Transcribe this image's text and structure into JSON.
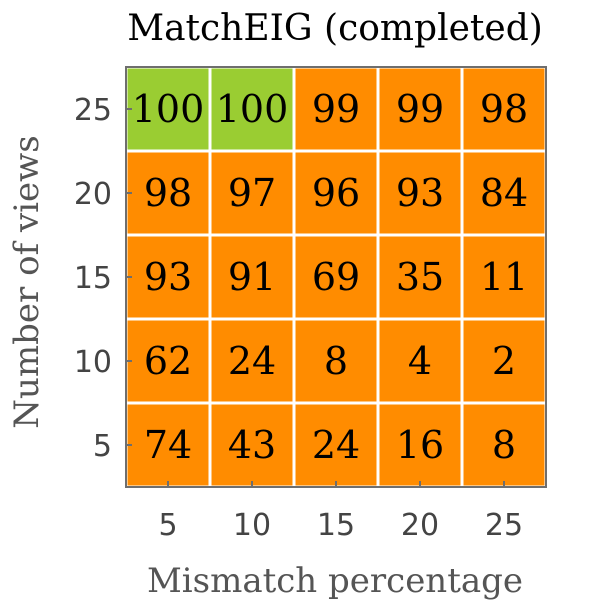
{
  "chart_data": {
    "type": "heatmap",
    "title": "MatchEIG (completed)",
    "xlabel": "Mismatch percentage",
    "ylabel": "Number of views",
    "x_categories": [
      "5",
      "10",
      "15",
      "20",
      "25"
    ],
    "y_categories": [
      "25",
      "20",
      "15",
      "10",
      "5"
    ],
    "values": [
      [
        100,
        100,
        99,
        99,
        98
      ],
      [
        98,
        97,
        96,
        93,
        84
      ],
      [
        93,
        91,
        69,
        35,
        11
      ],
      [
        62,
        24,
        8,
        4,
        2
      ],
      [
        74,
        43,
        24,
        16,
        8
      ]
    ],
    "colors": {
      "full": "#9acd32",
      "partial": "#ff8c00",
      "grid": "#ffffff",
      "frame": "#6e6e6e"
    },
    "color_rule": "value 100 shown green, otherwise orange"
  }
}
